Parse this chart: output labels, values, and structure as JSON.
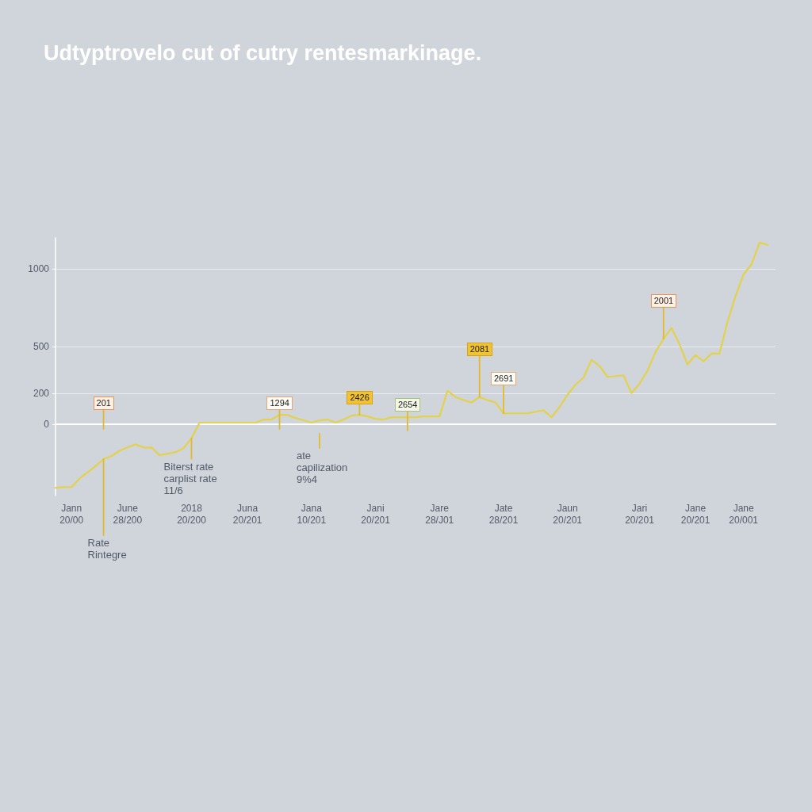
{
  "chart_data": {
    "type": "line",
    "title": "Udtyptrovelo cut of cutry rentesmarkinage.",
    "categories": [
      null,
      null,
      "Jann\n20/00",
      null,
      null,
      null,
      null,
      null,
      null,
      "June\n28/200",
      null,
      null,
      null,
      null,
      null,
      null,
      null,
      "2018\n20/200",
      null,
      null,
      null,
      null,
      null,
      null,
      "Juna\n20/201",
      null,
      null,
      null,
      null,
      null,
      null,
      null,
      "Jana\n10/201",
      null,
      null,
      null,
      null,
      null,
      null,
      null,
      "Jani\n20/201",
      null,
      null,
      null,
      null,
      null,
      null,
      null,
      "Jare\n28/J01",
      null,
      null,
      null,
      null,
      null,
      null,
      null,
      "Jate\n28/201",
      null,
      null,
      null,
      null,
      null,
      null,
      null,
      "Jaun\n20/201",
      null,
      null,
      null,
      null,
      null,
      null,
      null,
      null,
      "Jari\n20/201",
      null,
      null,
      null,
      null,
      null,
      null,
      "Jane\n20/201",
      null,
      null,
      null,
      null,
      null,
      "Jane\n20/001",
      null,
      null,
      null,
      null
    ],
    "values": [
      -410,
      -405,
      -405,
      -350,
      -310,
      -270,
      -225,
      -205,
      -170,
      -150,
      -130,
      -150,
      -150,
      -200,
      -190,
      -180,
      -155,
      -90,
      10,
      10,
      10,
      10,
      10,
      10,
      10,
      10,
      30,
      30,
      60,
      60,
      40,
      25,
      10,
      25,
      30,
      10,
      30,
      55,
      60,
      50,
      35,
      30,
      45,
      45,
      45,
      45,
      50,
      50,
      50,
      215,
      175,
      155,
      140,
      175,
      155,
      140,
      70,
      70,
      70,
      70,
      80,
      90,
      45,
      110,
      190,
      255,
      300,
      415,
      375,
      305,
      310,
      315,
      200,
      260,
      345,
      465,
      550,
      620,
      515,
      385,
      445,
      405,
      455,
      455,
      660,
      825,
      965,
      1030,
      1170,
      1155,
      null
    ],
    "color": "#e2d24c",
    "ylim": [
      -460,
      1200
    ],
    "yticks": [
      0,
      200,
      500,
      1000
    ],
    "grid": "y",
    "marker": "none",
    "line_style": "solid",
    "annotations": [
      "201",
      "1294",
      {
        "text": "2426",
        "y": 60
      },
      "2654",
      {
        "text": "2081",
        "y": 175
      },
      {
        "text": "2691",
        "y": 70
      },
      {
        "text": "2001",
        "y": 550
      },
      {
        "text": "Rate\nRintegre",
        "y": -225
      },
      {
        "text": "Biterst rate\ncarplist rate\n11/6",
        "y": -90
      },
      "ate\ncapilization\n9%4"
    ]
  }
}
